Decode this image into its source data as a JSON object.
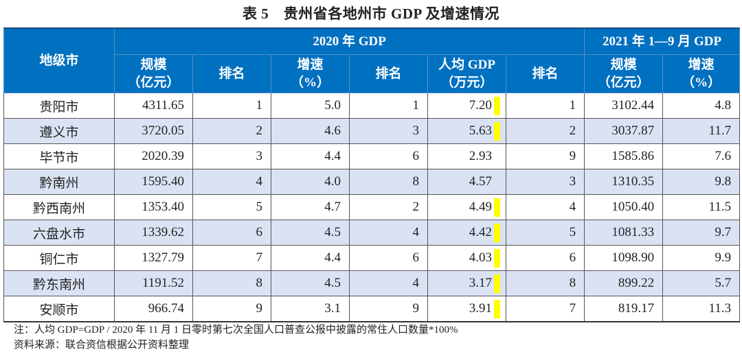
{
  "title": "表 5　贵州省各地州市 GDP 及增速情况",
  "header": {
    "city": "地级市",
    "group_2020": "2020 年 GDP",
    "group_2021": "2021 年 1—9 月 GDP",
    "cols": [
      "规模\n（亿元）",
      "排名",
      "增速\n（%）",
      "排名",
      "人均 GDP\n（万元）",
      "排名",
      "规模\n（亿元）",
      "增速\n（%）"
    ]
  },
  "highlight_color": "#ffff00",
  "rows": [
    {
      "city": "贵阳市",
      "gdp2020": "4311.65",
      "rank_gdp": "1",
      "growth2020": "5.0",
      "rank_growth": "1",
      "per_capita": "7.20",
      "highlight": true,
      "rank_pc": "1",
      "gdp2021": "3102.44",
      "growth2021": "4.8"
    },
    {
      "city": "遵义市",
      "gdp2020": "3720.05",
      "rank_gdp": "2",
      "growth2020": "4.6",
      "rank_growth": "3",
      "per_capita": "5.63",
      "highlight": true,
      "rank_pc": "2",
      "gdp2021": "3037.87",
      "growth2021": "11.7"
    },
    {
      "city": "毕节市",
      "gdp2020": "2020.39",
      "rank_gdp": "3",
      "growth2020": "4.4",
      "rank_growth": "6",
      "per_capita": "2.93",
      "highlight": false,
      "rank_pc": "9",
      "gdp2021": "1585.86",
      "growth2021": "7.6"
    },
    {
      "city": "黔南州",
      "gdp2020": "1595.40",
      "rank_gdp": "4",
      "growth2020": "4.0",
      "rank_growth": "8",
      "per_capita": "4.57",
      "highlight": false,
      "rank_pc": "3",
      "gdp2021": "1310.35",
      "growth2021": "9.8"
    },
    {
      "city": "黔西南州",
      "gdp2020": "1353.40",
      "rank_gdp": "5",
      "growth2020": "4.7",
      "rank_growth": "2",
      "per_capita": "4.49",
      "highlight": true,
      "rank_pc": "4",
      "gdp2021": "1050.40",
      "growth2021": "11.5"
    },
    {
      "city": "六盘水市",
      "gdp2020": "1339.62",
      "rank_gdp": "6",
      "growth2020": "4.5",
      "rank_growth": "4",
      "per_capita": "4.42",
      "highlight": true,
      "rank_pc": "5",
      "gdp2021": "1081.33",
      "growth2021": "9.7"
    },
    {
      "city": "铜仁市",
      "gdp2020": "1327.79",
      "rank_gdp": "7",
      "growth2020": "4.4",
      "rank_growth": "6",
      "per_capita": "4.03",
      "highlight": true,
      "rank_pc": "6",
      "gdp2021": "1098.90",
      "growth2021": "9.9"
    },
    {
      "city": "黔东南州",
      "gdp2020": "1191.52",
      "rank_gdp": "8",
      "growth2020": "4.5",
      "rank_growth": "4",
      "per_capita": "3.17",
      "highlight": true,
      "rank_pc": "8",
      "gdp2021": "899.22",
      "growth2021": "5.7"
    },
    {
      "city": "安顺市",
      "gdp2020": "966.74",
      "rank_gdp": "9",
      "growth2020": "3.1",
      "rank_growth": "9",
      "per_capita": "3.91",
      "highlight": true,
      "rank_pc": "7",
      "gdp2021": "819.17",
      "growth2021": "11.3"
    }
  ],
  "note": "注：人均 GDP=GDP / 2020 年 11 月 1 日零时第七次全国人口普查公报中披露的常住人口数量*100%",
  "source": "资料来源：联合资信根据公开资料整理"
}
